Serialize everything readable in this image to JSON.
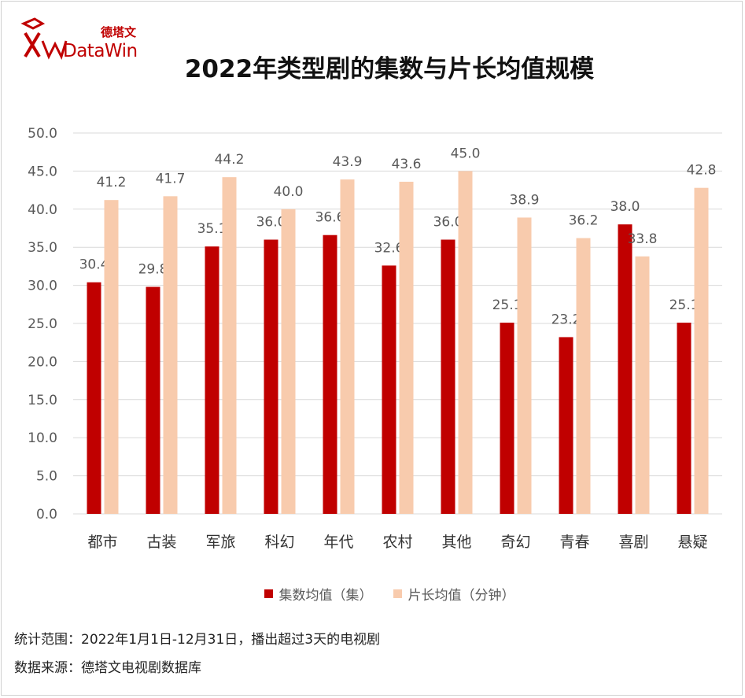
{
  "logo": {
    "cn": "德塔文",
    "en": "DataWin"
  },
  "chart_data": {
    "type": "bar",
    "title": "2022年类型剧的集数与片长均值规模",
    "categories": [
      "都市",
      "古装",
      "军旅",
      "科幻",
      "年代",
      "农村",
      "其他",
      "奇幻",
      "青春",
      "喜剧",
      "悬疑"
    ],
    "series": [
      {
        "name": "集数均值（集）",
        "color": "#c00000",
        "values": [
          30.4,
          29.8,
          35.1,
          36.0,
          36.6,
          32.6,
          36.0,
          25.1,
          23.2,
          38.0,
          25.1
        ]
      },
      {
        "name": "片长均值（分钟）",
        "color": "#f8cbad",
        "values": [
          41.2,
          41.7,
          44.2,
          40.0,
          43.9,
          43.6,
          45.0,
          38.9,
          36.2,
          33.8,
          42.8
        ]
      }
    ],
    "yticks": [
      "0.0",
      "5.0",
      "10.0",
      "15.0",
      "20.0",
      "25.0",
      "30.0",
      "35.0",
      "40.0",
      "45.0",
      "50.0"
    ],
    "ylim": [
      0,
      50
    ],
    "grid": true,
    "legend": "bottom"
  },
  "footnotes": {
    "scope": "统计范围：2022年1月1日-12月31日，播出超过3天的电视剧",
    "source": "数据来源：德塔文电视剧数据库"
  }
}
